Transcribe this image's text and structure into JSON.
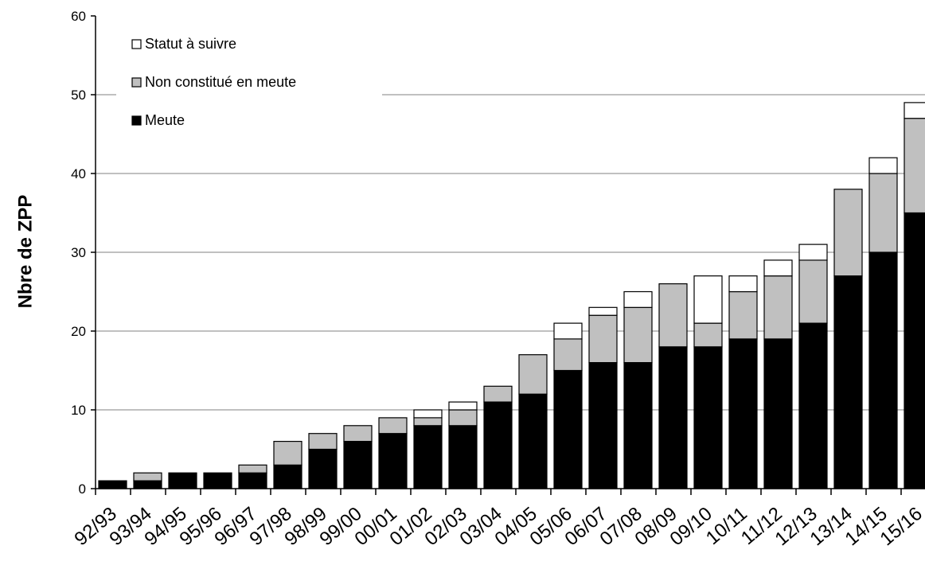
{
  "chart_data": {
    "type": "bar",
    "stacked": true,
    "title": "",
    "xlabel": "",
    "ylabel": "Nbre de ZPP",
    "ylim": [
      0,
      60
    ],
    "yticks": [
      0,
      10,
      20,
      30,
      40,
      50,
      60
    ],
    "grid": true,
    "legend_position": "top-left",
    "categories": [
      "92/93",
      "93/94",
      "94/95",
      "95/96",
      "96/97",
      "97/98",
      "98/99",
      "99/00",
      "00/01",
      "01/02",
      "02/03",
      "03/04",
      "04/05",
      "05/06",
      "06/07",
      "07/08",
      "08/09",
      "09/10",
      "10/11",
      "11/12",
      "12/13",
      "13/14",
      "14/15",
      "15/16"
    ],
    "series": [
      {
        "name": "Meute",
        "color": "#000000",
        "values": [
          1,
          1,
          2,
          2,
          2,
          3,
          5,
          6,
          7,
          8,
          8,
          11,
          12,
          15,
          16,
          16,
          18,
          18,
          19,
          19,
          21,
          27,
          30,
          35
        ]
      },
      {
        "name": "Non constitué en meute",
        "color": "#c0c0c0",
        "values": [
          0,
          1,
          0,
          0,
          1,
          3,
          2,
          2,
          2,
          1,
          2,
          2,
          5,
          4,
          6,
          7,
          8,
          3,
          6,
          8,
          8,
          11,
          10,
          12
        ]
      },
      {
        "name": "Statut à suivre",
        "color": "#ffffff",
        "values": [
          0,
          0,
          0,
          0,
          0,
          0,
          0,
          0,
          0,
          1,
          1,
          0,
          0,
          2,
          1,
          2,
          0,
          6,
          2,
          2,
          2,
          0,
          2,
          2
        ]
      }
    ],
    "legend_order": [
      "Statut à suivre",
      "Non constitué en meute",
      "Meute"
    ]
  }
}
